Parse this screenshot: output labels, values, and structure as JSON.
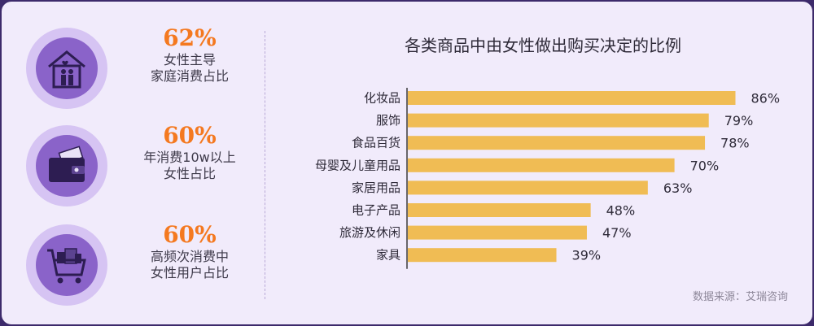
{
  "stats": [
    {
      "value": "62%",
      "line1": "女性主导",
      "line2": "家庭消费占比",
      "icon": "house-family-icon"
    },
    {
      "value": "60%",
      "line1": "年消费10w以上",
      "line2": "女性占比",
      "icon": "wallet-icon"
    },
    {
      "value": "60%",
      "line1": "高频次消费中",
      "line2": "女性用户占比",
      "icon": "shopping-cart-icon"
    }
  ],
  "chart_data": {
    "type": "bar",
    "orientation": "horizontal",
    "title": "各类商品中由女性做出购买决定的比例",
    "categories": [
      "化妆品",
      "服饰",
      "食品百货",
      "母婴及儿童用品",
      "家居用品",
      "电子产品",
      "旅游及休闲",
      "家具"
    ],
    "values": [
      86,
      79,
      78,
      70,
      63,
      48,
      47,
      39
    ],
    "data_labels": [
      "86%",
      "79%",
      "78%",
      "70%",
      "63%",
      "48%",
      "47%",
      "39%"
    ],
    "xlim": [
      0,
      100
    ],
    "grid": false,
    "bar_color": "#f0bc54"
  },
  "source": "数据来源：艾瑞咨询",
  "colors": {
    "accent": "#f47920",
    "icon_circle": "#8a63c9",
    "ring": "#d6c4f3"
  }
}
